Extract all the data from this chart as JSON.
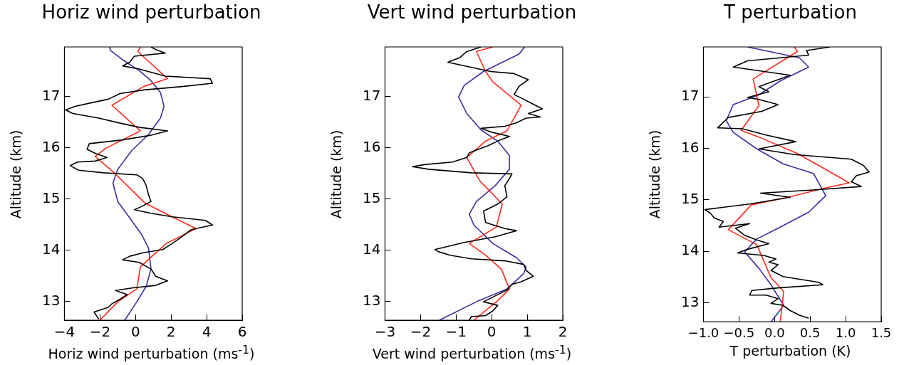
{
  "chart_data": [
    {
      "type": "line",
      "title": "Horiz wind perturbation",
      "xlabel": "Horiz wind perturbation (ms$^{-1}$)",
      "ylabel": "Altitude (km)",
      "xlim": [
        -4,
        6
      ],
      "xticks": [
        -4,
        -2,
        0,
        2,
        4,
        6
      ],
      "ylim": [
        12.63,
        17.97
      ],
      "yticks": [
        13,
        14,
        15,
        16,
        17
      ],
      "grid": false,
      "legend": false,
      "marker": "none",
      "series": [
        {
          "color": "#000000",
          "x": [
            -2.07,
            -2.33,
            -1.53,
            -1.33,
            -0.87,
            -0.47,
            -1.13,
            -0.2,
            1.13,
            1.8,
            1.13,
            0.87,
            0.2,
            -0.73,
            -0.33,
            0.47,
            1.53,
            2.07,
            2.6,
            3.13,
            4.33,
            3.93,
            2.07,
            0.87,
            -0.07,
            0.33,
            0.87,
            0.73,
            0.6,
            0.4,
            0.07,
            -1.8,
            -3.2,
            -3.67,
            -3.27,
            -2.27,
            -1.6,
            -2.2,
            -2.73,
            -2.6,
            -0.8,
            0.8,
            1.8,
            0.2,
            -0.73,
            -2.07,
            -3.53,
            -3.93,
            -3.4,
            -2.47,
            -1.53,
            -0.87,
            0.47,
            2.73,
            4.33,
            4.2,
            1.67,
            0.2,
            -0.73,
            -0.33,
            -0.07,
            1.67,
            1.13,
            0.87
          ],
          "values": [
            12.65,
            12.79,
            12.88,
            12.95,
            13.04,
            13.13,
            13.21,
            13.26,
            13.31,
            13.4,
            13.49,
            13.63,
            13.76,
            13.81,
            13.88,
            13.95,
            14.01,
            14.13,
            14.26,
            14.4,
            14.49,
            14.58,
            14.65,
            14.72,
            14.79,
            14.85,
            14.95,
            15.08,
            15.26,
            15.4,
            15.47,
            15.51,
            15.56,
            15.65,
            15.72,
            15.74,
            15.81,
            15.88,
            15.97,
            16.08,
            16.15,
            16.24,
            16.33,
            16.4,
            16.47,
            16.58,
            16.67,
            16.74,
            16.81,
            16.88,
            16.95,
            17.06,
            17.13,
            17.2,
            17.26,
            17.35,
            17.4,
            17.54,
            17.6,
            17.67,
            17.79,
            17.85,
            17.92,
            17.97
          ]
        },
        {
          "color": "#ff2a1a",
          "x": [
            -2.0,
            -1.0,
            0.07,
            0.27,
            1.0,
            1.73,
            3.4,
            1.93,
            0.53,
            -1.2,
            -2.27,
            -1.67,
            0.27,
            -1.33,
            0.47,
            1.8,
            0.13,
            0.27
          ],
          "values": [
            12.63,
            12.99,
            13.24,
            13.67,
            13.9,
            14.13,
            14.42,
            14.67,
            14.92,
            15.51,
            15.83,
            15.99,
            16.33,
            16.83,
            17.2,
            17.35,
            17.88,
            17.97
          ]
        },
        {
          "color": "#3a2ea0",
          "x": [
            -0.6,
            0.07,
            0.6,
            0.87,
            0.73,
            0.33,
            -0.33,
            -1.0,
            -1.27,
            -1.0,
            -0.2,
            0.73,
            1.4,
            1.6,
            1.4,
            0.87,
            0.2,
            -0.73,
            -1.4,
            -1.47
          ],
          "values": [
            12.63,
            12.99,
            13.29,
            13.63,
            14.04,
            14.31,
            14.63,
            14.95,
            15.31,
            15.58,
            15.95,
            16.26,
            16.58,
            16.81,
            17.08,
            17.31,
            17.51,
            17.72,
            17.9,
            17.97
          ]
        }
      ]
    },
    {
      "type": "line",
      "title": "Vert wind perturbation",
      "xlabel": "Vert wind perturbation (ms$^{-1}$)",
      "ylabel": "Altitude (km)",
      "xlim": [
        -3,
        2
      ],
      "xticks": [
        -3,
        -2,
        -1,
        0,
        1,
        2
      ],
      "ylim": [
        12.63,
        17.97
      ],
      "yticks": [
        13,
        14,
        15,
        16,
        17
      ],
      "grid": false,
      "legend": false,
      "marker": "none",
      "series": [
        {
          "color": "#000000",
          "x": [
            -0.63,
            -0.57,
            -0.17,
            0.03,
            0.17,
            -0.23,
            0.03,
            0.43,
            0.57,
            0.83,
            1.17,
            0.97,
            0.9,
            0.37,
            -0.57,
            -1.17,
            -1.5,
            -1.6,
            -0.77,
            0.1,
            0.7,
            0.37,
            -0.17,
            -0.23,
            0.17,
            0.43,
            0.37,
            0.5,
            0.57,
            -0.57,
            -1.77,
            -2.23,
            -1.9,
            -1.1,
            -0.7,
            -0.63,
            -0.1,
            0.23,
            0.5,
            -0.03,
            -0.3,
            0.37,
            0.7,
            0.97,
            1.37,
            1.03,
            1.43,
            1.17,
            0.9,
            0.63,
            0.77,
            1.03,
            0.63,
            -0.03,
            -0.63,
            -1.23,
            -0.9,
            -0.7,
            -0.3
          ],
          "values": [
            12.63,
            12.7,
            12.72,
            12.81,
            12.92,
            12.99,
            13.08,
            13.22,
            13.33,
            13.38,
            13.49,
            13.6,
            13.72,
            13.79,
            13.83,
            13.9,
            13.97,
            14.01,
            14.15,
            14.26,
            14.38,
            14.42,
            14.54,
            14.76,
            14.9,
            15.04,
            15.26,
            15.4,
            15.49,
            15.51,
            15.58,
            15.63,
            15.67,
            15.72,
            15.81,
            15.9,
            16.04,
            16.15,
            16.22,
            16.31,
            16.38,
            16.42,
            16.49,
            16.58,
            16.6,
            16.67,
            16.76,
            16.85,
            16.95,
            17.04,
            17.2,
            17.33,
            17.45,
            17.49,
            17.58,
            17.67,
            17.76,
            17.88,
            17.97
          ]
        },
        {
          "color": "#ff2a1a",
          "x": [
            -0.5,
            0.17,
            0.5,
            0.27,
            -0.17,
            -0.63,
            0.13,
            0.3,
            -0.33,
            -0.7,
            -0.17,
            0.43,
            0.83,
            0.03,
            -0.17,
            -0.43,
            0.03
          ],
          "values": [
            12.63,
            13.01,
            13.24,
            13.63,
            13.9,
            14.13,
            14.45,
            14.9,
            15.35,
            15.81,
            16.13,
            16.33,
            16.83,
            17.29,
            17.49,
            17.88,
            17.97
          ]
        },
        {
          "color": "#3a2ea0",
          "x": [
            -1.47,
            -0.43,
            0.43,
            0.9,
            0.97,
            0.7,
            0.03,
            -0.5,
            -0.63,
            -0.43,
            0.1,
            0.5,
            0.5,
            0.17,
            -0.3,
            -0.7,
            -0.93,
            -0.77,
            -0.23,
            0.3,
            0.77,
            0.93
          ],
          "values": [
            12.63,
            12.99,
            13.24,
            13.54,
            13.67,
            13.85,
            14.13,
            14.49,
            14.7,
            14.95,
            15.26,
            15.58,
            15.85,
            16.13,
            16.35,
            16.67,
            16.99,
            17.22,
            17.49,
            17.67,
            17.83,
            17.97
          ]
        }
      ]
    },
    {
      "type": "line",
      "title": "T perturbation",
      "xlabel": "T perturbation (K)",
      "ylabel": "Altitude (km)",
      "xlim": [
        -1,
        1.5
      ],
      "xticks": [
        {
          "value": -1,
          "label": "−1.0"
        },
        {
          "value": -0.5,
          "label": "−0.5"
        },
        {
          "value": 0,
          "label": "0.0"
        },
        {
          "value": 0.5,
          "label": "0.5"
        },
        {
          "value": 1,
          "label": "1.0"
        },
        {
          "value": 1.5,
          "label": "1.5"
        }
      ],
      "ylim": [
        12.63,
        17.97
      ],
      "yticks": [
        13,
        14,
        15,
        16,
        17
      ],
      "grid": false,
      "legend": false,
      "marker": "none",
      "series": [
        {
          "color": "#000000",
          "x": [
            0.48,
            0.35,
            0.22,
            0.12,
            -0.05,
            0.05,
            -0.12,
            -0.35,
            -0.32,
            0.05,
            0.68,
            0.62,
            0.12,
            -0.05,
            0.05,
            -0.08,
            0.02,
            -0.15,
            -0.52,
            -0.38,
            -0.08,
            -0.25,
            -0.42,
            -0.55,
            -0.35,
            -0.78,
            -0.72,
            -0.85,
            -0.9,
            -0.98,
            -0.35,
            0.22,
            -0.2,
            0.62,
            1.22,
            1.08,
            1.15,
            1.33,
            1.25,
            1.08,
            0.28,
            -0.22,
            0.3,
            -0.12,
            -0.45,
            -0.8,
            -0.65,
            -0.18,
            0.05,
            -0.22,
            -0.38,
            -0.08,
            -0.22,
            0.22,
            -0.58,
            -0.38,
            0.48,
            0.45,
            0.78
          ],
          "values": [
            12.7,
            12.76,
            12.85,
            12.95,
            12.99,
            13.08,
            13.15,
            13.15,
            13.24,
            13.29,
            13.35,
            13.4,
            13.51,
            13.63,
            13.74,
            13.79,
            13.85,
            13.92,
            13.97,
            14.04,
            14.15,
            14.22,
            14.31,
            14.45,
            14.54,
            14.47,
            14.58,
            14.65,
            14.74,
            14.81,
            14.92,
            15.05,
            15.13,
            15.2,
            15.26,
            15.35,
            15.47,
            15.54,
            15.67,
            15.79,
            15.88,
            15.99,
            16.13,
            16.26,
            16.38,
            16.4,
            16.6,
            16.72,
            16.85,
            16.95,
            16.99,
            17.1,
            17.2,
            17.42,
            17.58,
            17.7,
            17.81,
            17.9,
            17.97
          ]
        },
        {
          "color": "#ff2a1a",
          "x": [
            0.08,
            0.13,
            -0.05,
            -0.25,
            -0.65,
            -0.33,
            0.22,
            0.68,
            1.05,
            0.58,
            0.32,
            -0.22,
            -0.47,
            -0.22,
            -0.3,
            0.32,
            0.28
          ],
          "values": [
            12.63,
            13.22,
            13.49,
            14.13,
            14.42,
            14.9,
            15.06,
            15.22,
            15.33,
            15.7,
            15.9,
            16.22,
            16.35,
            16.83,
            17.35,
            17.88,
            17.97
          ]
        },
        {
          "color": "#3a2ea0",
          "x": [
            -0.05,
            0.13,
            -0.05,
            -0.22,
            -0.42,
            -0.25,
            0.05,
            0.48,
            0.72,
            0.55,
            0.12,
            -0.25,
            -0.58,
            -0.68,
            -0.58,
            -0.22,
            0.08,
            0.48,
            0.35,
            -0.38
          ],
          "values": [
            12.63,
            12.95,
            13.35,
            13.67,
            13.99,
            14.24,
            14.45,
            14.76,
            15.08,
            15.51,
            15.7,
            15.99,
            16.31,
            16.54,
            16.85,
            17.04,
            17.31,
            17.58,
            17.76,
            17.97
          ]
        }
      ]
    }
  ]
}
